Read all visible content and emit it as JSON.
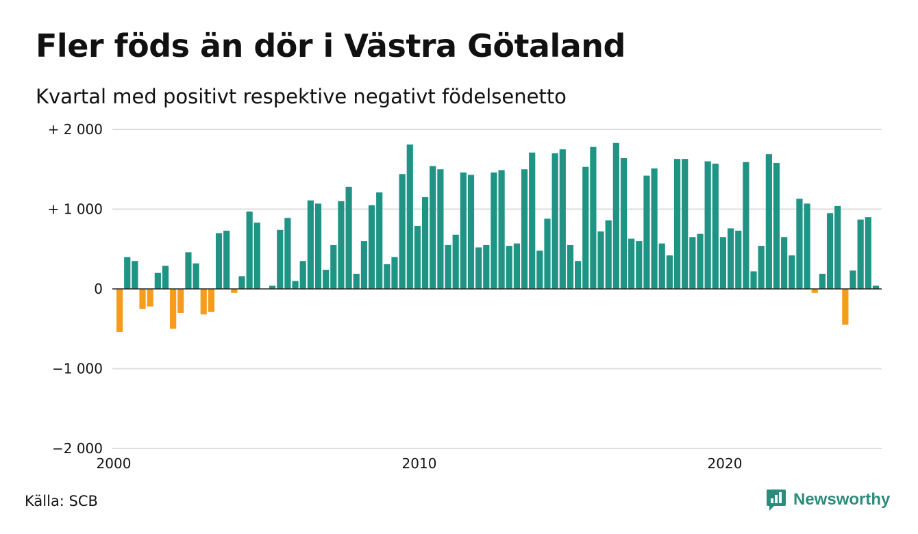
{
  "title": "Fler föds än dör i Västra Götaland",
  "subtitle": "Kvartal med positivt respektive negativt födelsenetto",
  "source": "Källa: SCB",
  "brand": {
    "name": "Newsworthy",
    "logo_icon": "chart-speech-bubble-icon"
  },
  "colors": {
    "positive": "#1f9485",
    "negative": "#f59c1d",
    "grid": "#dddddd",
    "zero_line": "#222222"
  },
  "chart_data": {
    "type": "bar",
    "x_start": "2000 Q1",
    "ylim": [
      -2000,
      2000
    ],
    "yticks": [
      {
        "value": 2000,
        "label": "+ 2 000"
      },
      {
        "value": 1000,
        "label": "+ 1 000"
      },
      {
        "value": 0,
        "label": "0"
      },
      {
        "value": -1000,
        "label": "−1 000"
      },
      {
        "value": -2000,
        "label": "−2 000"
      }
    ],
    "xticks": [
      {
        "year": 2000,
        "label": "2000"
      },
      {
        "year": 2010,
        "label": "2010"
      },
      {
        "year": 2020,
        "label": "2020"
      }
    ],
    "values": [
      -540,
      400,
      350,
      -250,
      -220,
      200,
      290,
      -500,
      -300,
      460,
      320,
      -320,
      -290,
      700,
      730,
      -50,
      160,
      970,
      830,
      0,
      40,
      740,
      890,
      100,
      350,
      1110,
      1070,
      240,
      550,
      1100,
      1280,
      190,
      600,
      1050,
      1210,
      310,
      400,
      1440,
      1810,
      790,
      1150,
      1540,
      1500,
      550,
      680,
      1460,
      1430,
      520,
      550,
      1460,
      1490,
      540,
      570,
      1500,
      1710,
      480,
      880,
      1700,
      1750,
      550,
      350,
      1530,
      1780,
      720,
      860,
      1830,
      1640,
      630,
      600,
      1420,
      1510,
      570,
      420,
      1630,
      1630,
      650,
      690,
      1600,
      1570,
      650,
      760,
      730,
      1590,
      220,
      540,
      1690,
      1580,
      650,
      420,
      1130,
      1070,
      -50,
      190,
      950,
      1040,
      -450,
      230,
      870,
      900,
      40
    ]
  }
}
